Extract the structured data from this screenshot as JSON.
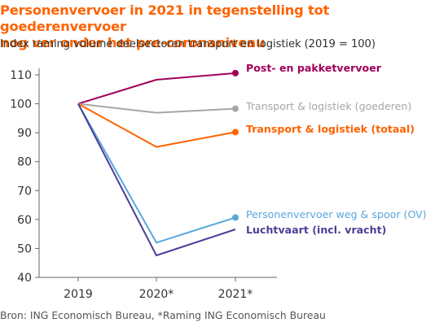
{
  "header": {
    "title_line1": "Personenvervoer in 2021 in tegenstelling tot goederenvervoer",
    "title_line2": "nog ver onder het pre-coronaniveau",
    "subtitle": "Index raming volume deelsectoren transport en logistiek (2019 = 100)"
  },
  "footer": {
    "source": "Bron: ING Economisch Bureau, *Raming ING Economisch Bureau"
  },
  "chart_data": {
    "type": "line",
    "title": "Personenvervoer in 2021 in tegenstelling tot goederenvervoer nog ver onder het pre-coronaniveau",
    "subtitle": "Index raming volume deelsectoren transport en logistiek (2019 = 100)",
    "categories": [
      "2019",
      "2020*",
      "2021*"
    ],
    "ylim": [
      40,
      110
    ],
    "yticks": [
      40,
      50,
      60,
      70,
      80,
      90,
      100,
      110
    ],
    "grid": false,
    "legend": "direct labels at line ends (right)",
    "series": [
      {
        "name": "Post- en pakketvervoer",
        "values": [
          100,
          108.3,
          110.6
        ],
        "color": "#a0005a",
        "label_bold": true,
        "marker_end": true
      },
      {
        "name": "Transport & logistiek (goederen)",
        "values": [
          100,
          96.9,
          98.3
        ],
        "color": "#a6a6a6",
        "label_bold": false,
        "marker_end": true
      },
      {
        "name": "Transport & logistiek (totaal)",
        "values": [
          100,
          85.1,
          90.2
        ],
        "color": "#ff6200",
        "label_bold": true,
        "marker_end": true
      },
      {
        "name": "Personenvervoer weg & spoor (OV)",
        "values": [
          100,
          52.0,
          60.7
        ],
        "color": "#5aa7dc",
        "label_bold": false,
        "marker_end": true
      },
      {
        "name": "Luchtvaart (incl. vracht)",
        "values": [
          100,
          47.6,
          56.6
        ],
        "color": "#4d3e96",
        "label_bold": true,
        "marker_end": false
      }
    ]
  }
}
